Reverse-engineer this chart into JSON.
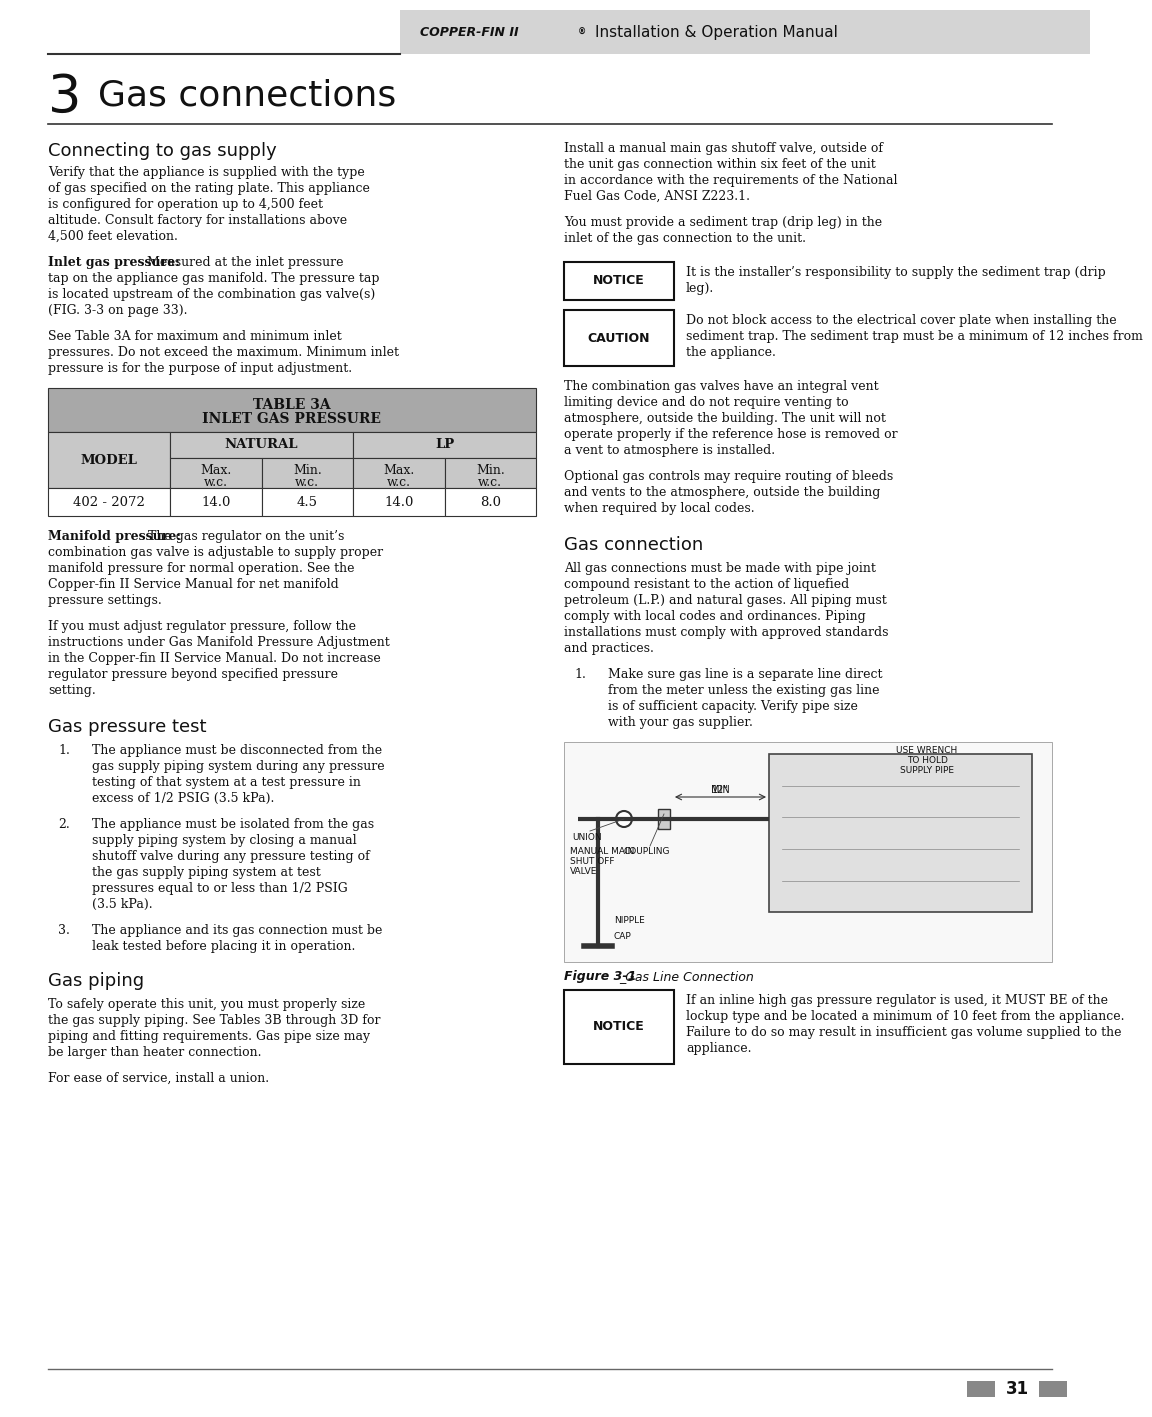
{
  "page_number": "31",
  "header_brand": "COPPER-FIN II",
  "header_sup": "®",
  "header_title": "Installation & Operation Manual",
  "header_bg": "#d4d4d4",
  "section_number": "3",
  "section_title": "Gas connections",
  "subsection1_title": "Connecting to gas supply",
  "subsection1_body": "Verify that the appliance is supplied with the type of gas specified on the rating plate.  This appliance is configured for operation up to 4,500 feet altitude.  Consult factory for installations above 4,500 feet elevation.",
  "inlet_gas_bold": "Inlet gas pressure:",
  "inlet_gas_body": "  Measured at the inlet pressure tap on the appliance gas manifold.  The pressure tap is located upstream of the combination gas valve(s) (FIG. 3-3 on page 33).",
  "table_note": "See Table 3A for maximum and minimum inlet pressures.  Do not exceed the maximum.  Minimum inlet pressure is for the purpose of input adjustment.",
  "table_title1": "TABLE 3A",
  "table_title2": "INLET GAS PRESSURE",
  "table_header_bg": "#a8a8a8",
  "table_sub_bg": "#c8c8c8",
  "table_row_bg": "#ffffff",
  "table_model_bg": "#c8c8c8",
  "table_model": "MODEL",
  "table_col1": "NATURAL",
  "table_col2": "LP",
  "table_data_model": "402 - 2072",
  "table_data": [
    "14.0",
    "4.5",
    "14.0",
    "8.0"
  ],
  "manifold_bold": "Manifold pressure:",
  "manifold_rest": "  The gas regulator on the unit’s combination gas valve is adjustable to supply proper manifold pressure for normal operation. See the Copper-fin II Service Manual for net manifold pressure settings.",
  "manifold_body2": "If you must adjust regulator pressure, follow the instructions under Gas Manifold Pressure Adjustment in the Copper-fin II Service Manual.  Do not increase regulator pressure beyond specified pressure setting.",
  "gas_pressure_title": "Gas pressure test",
  "gas_pressure_items": [
    "The appliance must be disconnected from the gas supply piping system during any pressure testing of that system at a test pressure in excess of 1/2 PSIG (3.5 kPa).",
    "The appliance must be isolated from the gas supply piping system by closing a manual shutoff valve during any pressure testing of the gas supply piping system at test pressures equal to or less than 1/2 PSIG (3.5 kPa).",
    "The appliance and its gas connection must be leak tested before placing it in operation."
  ],
  "gas_piping_title": "Gas piping",
  "gas_piping_body": "To safely operate this unit, you must properly size the gas supply piping. See Tables 3B through 3D for piping and fitting requirements. Gas pipe size may be larger than heater connection.",
  "gas_piping_body2": "For ease of service, install a union.",
  "right_col_body1": "Install a manual main gas shutoff valve, outside of the unit gas connection within six feet of the unit in accordance with the requirements of the National Fuel Gas Code, ANSI Z223.1.",
  "right_col_body2": "You must provide a sediment trap (drip leg) in the inlet of the gas connection to the unit.",
  "notice1_label": "NOTICE",
  "notice1_text": "It is the installer’s responsibility to supply the sediment trap (drip leg).",
  "caution_label": "CAUTION",
  "caution_text": "Do not block access to the electrical cover plate when installing the sediment trap.  The sediment trap must be a minimum of 12 inches from the appliance.",
  "right_col_body3": "The combination gas valves have an integral vent limiting device and do not require venting to atmosphere, outside the building. The unit will not operate properly if the reference hose is removed or a vent to atmosphere is installed.",
  "right_col_body4": "Optional gas controls may require routing of bleeds and vents to the atmosphere, outside the building when required by local codes.",
  "gas_connection_title": "Gas connection",
  "gas_connection_body": "All gas connections must be made with pipe joint compound resistant to the action of liquefied petroleum (L.P.) and natural gases.  All piping must comply with local codes and ordinances.  Piping installations must comply with approved standards and practices.",
  "gas_connection_item1": "Make sure gas line is a separate line direct from the meter unless the existing gas line is of sufficient capacity. Verify pipe size with your gas supplier.",
  "figure_caption_bold": "Figure 3-1",
  "figure_caption_rest": "_Gas Line Connection",
  "notice2_label": "NOTICE",
  "notice2_text": "If an inline high gas pressure regulator is used, it MUST BE of the lockup type and be located a minimum of 10 feet from the appliance.  Failure to do so may result in insufficient gas volume supplied to the appliance.",
  "bg_color": "#ffffff"
}
